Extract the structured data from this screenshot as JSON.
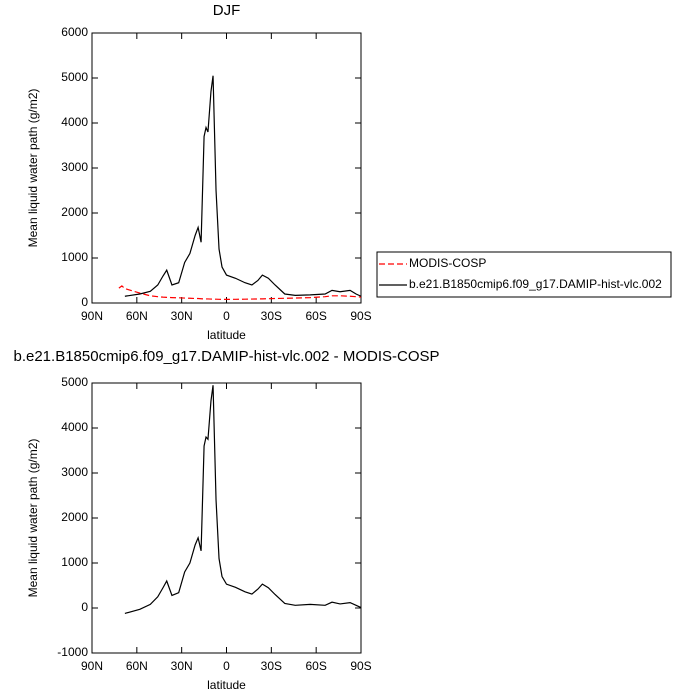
{
  "chart_data": [
    {
      "type": "line",
      "title": "DJF",
      "x_label": "latitude",
      "y_label": "Mean liquid water path (g/m2)",
      "x": [
        72,
        70,
        68,
        58,
        51,
        46,
        42.5,
        40,
        36.5,
        32,
        28,
        24.5,
        21,
        19,
        17,
        15,
        13.7,
        12.4,
        10.4,
        9,
        7,
        5,
        3,
        0,
        -6,
        -12.4,
        -17,
        -21,
        -24,
        -28,
        -32.5,
        -39,
        -46,
        -56,
        -66,
        -70.6,
        -76,
        -82.7,
        -86.7,
        -90
      ],
      "series": [
        {
          "name": "MODIS-COSP",
          "color": "#ff0000",
          "line_style": "dashed",
          "values": [
            330,
            380,
            320,
            220,
            160,
            140,
            130,
            125,
            120,
            115,
            110,
            105,
            100,
            100,
            95,
            90,
            90,
            90,
            88,
            85,
            85,
            82,
            80,
            80,
            82,
            85,
            88,
            90,
            92,
            95,
            100,
            105,
            110,
            120,
            140,
            160,
            160,
            150,
            140,
            130
          ]
        },
        {
          "name": "b.e21.B1850cmip6.f09_g17.DAMIP-hist-vlc.002",
          "color": "#000000",
          "line_style": "solid",
          "values": [
            null,
            null,
            150,
            200,
            260,
            400,
            600,
            730,
            400,
            450,
            900,
            1100,
            1500,
            1680,
            1350,
            3700,
            3900,
            3800,
            4700,
            5050,
            2500,
            1200,
            800,
            620,
            550,
            450,
            400,
            500,
            620,
            550,
            400,
            200,
            170,
            180,
            200,
            280,
            250,
            280,
            200,
            150
          ]
        }
      ],
      "xlim": [
        90,
        -90
      ],
      "xticks": [
        {
          "value": 90,
          "label": "90N"
        },
        {
          "value": 60,
          "label": "60N"
        },
        {
          "value": 30,
          "label": "30N"
        },
        0,
        {
          "value": -30,
          "label": "30S"
        },
        {
          "value": -60,
          "label": "60S"
        },
        {
          "value": -90,
          "label": "90S"
        }
      ],
      "ylim": [
        0,
        6000
      ],
      "yticks": [
        0,
        1000,
        2000,
        3000,
        4000,
        5000,
        6000
      ],
      "legend": "right"
    },
    {
      "type": "line",
      "title": "b.e21.B1850cmip6.f09_g17.DAMIP-hist-vlc.002 - MODIS-COSP",
      "x_label": "latitude",
      "y_label": "Mean liquid water path (g/m2)",
      "x": [
        68,
        58,
        51,
        46,
        42.5,
        40,
        36.5,
        32,
        28,
        24.5,
        21,
        19,
        17,
        15,
        13.7,
        12.4,
        10.4,
        9,
        7,
        5,
        3,
        0,
        -6,
        -12.4,
        -17,
        -21,
        -24,
        -28,
        -32.5,
        -39,
        -46,
        -56,
        -66,
        -70.6,
        -76,
        -82.7,
        -86.7,
        -90
      ],
      "series": [
        {
          "color": "#000000",
          "line_style": "solid",
          "values": [
            -120,
            -30,
            80,
            250,
            450,
            600,
            280,
            340,
            800,
            1000,
            1400,
            1560,
            1270,
            3600,
            3800,
            3750,
            4600,
            4950,
            2400,
            1100,
            700,
            530,
            460,
            360,
            310,
            420,
            530,
            450,
            300,
            100,
            60,
            80,
            60,
            130,
            90,
            120,
            60,
            10
          ]
        }
      ],
      "xlim": [
        90,
        -90
      ],
      "xticks": [
        {
          "value": 90,
          "label": "90N"
        },
        {
          "value": 60,
          "label": "60N"
        },
        {
          "value": 30,
          "label": "30N"
        },
        0,
        {
          "value": -30,
          "label": "30S"
        },
        {
          "value": -60,
          "label": "60S"
        },
        {
          "value": -90,
          "label": "90S"
        }
      ],
      "ylim": [
        -1000,
        5000
      ],
      "yticks": [
        -1000,
        0,
        1000,
        2000,
        3000,
        4000,
        5000
      ]
    }
  ]
}
